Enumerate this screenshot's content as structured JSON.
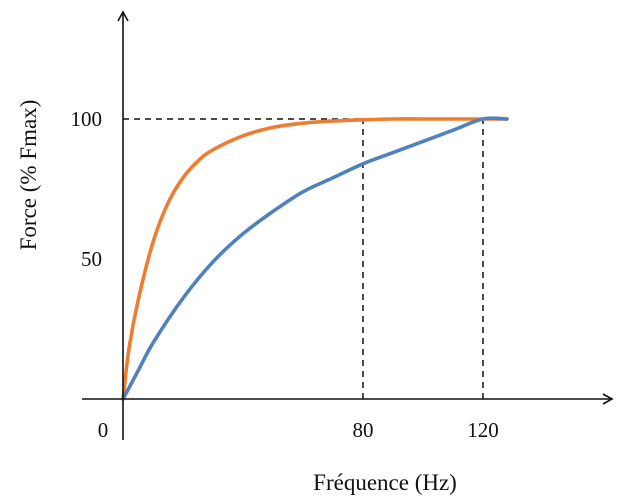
{
  "chart_data": {
    "type": "line",
    "title": "",
    "xlabel": "Fréquence (Hz)",
    "ylabel": "Force (% Fmax)",
    "xlim": [
      0,
      130
    ],
    "ylim": [
      0,
      140
    ],
    "x_ticks": [
      0,
      80,
      120
    ],
    "x_tick_labels": [
      "0",
      "80",
      "120"
    ],
    "y_ticks": [
      50,
      100
    ],
    "y_tick_labels": [
      "50",
      "100"
    ],
    "grid": false,
    "legend": "none",
    "reference_lines": [
      {
        "axis": "y",
        "value": 100,
        "from_x": 0,
        "to_x": 120,
        "style": "dashed"
      },
      {
        "axis": "x",
        "value": 80,
        "from_y": 0,
        "to_y": 100,
        "style": "dashed"
      },
      {
        "axis": "x",
        "value": 120,
        "from_y": 0,
        "to_y": 100,
        "style": "dashed"
      }
    ],
    "series": [
      {
        "color": "#ED7D31",
        "x": [
          0,
          2,
          5,
          10,
          15,
          20,
          25,
          30,
          40,
          50,
          60,
          70,
          80,
          90,
          100,
          110,
          120,
          128
        ],
        "y": [
          0,
          18,
          35,
          56,
          70,
          79,
          85,
          89,
          94,
          97,
          98.5,
          99.3,
          99.7,
          100,
          100,
          100,
          100,
          100
        ]
      },
      {
        "color": "#4F81BD",
        "x": [
          0,
          5,
          10,
          20,
          30,
          40,
          50,
          60,
          70,
          80,
          90,
          100,
          110,
          120,
          128
        ],
        "y": [
          0,
          10,
          20,
          36,
          49,
          59,
          67,
          74,
          79,
          84,
          88,
          92,
          96,
          100,
          100
        ]
      }
    ]
  }
}
